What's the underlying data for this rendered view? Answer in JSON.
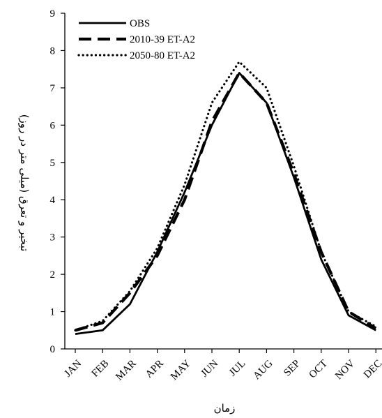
{
  "chart_data": {
    "type": "line",
    "title": "",
    "xlabel": "زمان",
    "ylabel": "تبخیر و تعرق (میلی متر در روز)",
    "categories": [
      "JAN",
      "FEB",
      "MAR",
      "APR",
      "MAY",
      "JUN",
      "JUL",
      "AUG",
      "SEP",
      "OCT",
      "NOV",
      "DEC"
    ],
    "ylim": [
      0,
      9
    ],
    "yticks": [
      0,
      1,
      2,
      3,
      4,
      5,
      6,
      7,
      8,
      9
    ],
    "grid": false,
    "legend_position": "top-left",
    "series": [
      {
        "name": "OBS",
        "style": "solid",
        "values": [
          0.4,
          0.5,
          1.2,
          2.6,
          4.2,
          6.0,
          7.4,
          6.6,
          4.6,
          2.4,
          0.9,
          0.5
        ]
      },
      {
        "name": "2010-39 ET-A2",
        "style": "dashed",
        "values": [
          0.5,
          0.7,
          1.5,
          2.5,
          4.0,
          6.1,
          7.4,
          6.6,
          4.7,
          2.6,
          1.0,
          0.55
        ]
      },
      {
        "name": "2050-80 ET-A2",
        "style": "dotted",
        "values": [
          0.5,
          0.75,
          1.55,
          2.7,
          4.4,
          6.6,
          7.7,
          7.0,
          4.9,
          2.6,
          1.0,
          0.6
        ]
      }
    ]
  }
}
